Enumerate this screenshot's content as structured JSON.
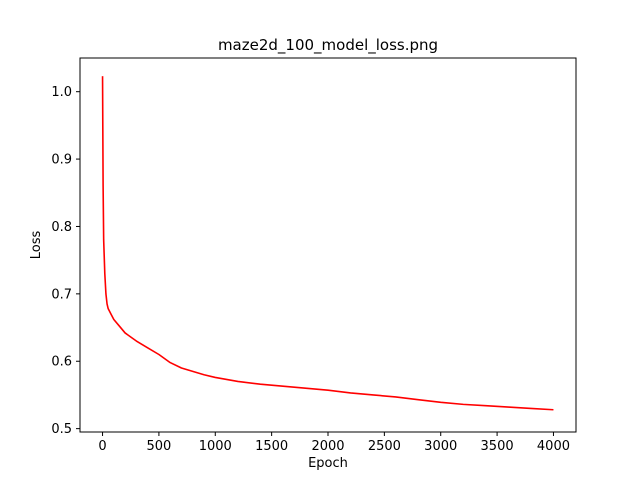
{
  "chart_data": {
    "type": "line",
    "title": "maze2d_100_model_loss.png",
    "xlabel": "Epoch",
    "ylabel": "Loss",
    "xlim": [
      -200,
      4200
    ],
    "ylim": [
      0.495,
      1.05
    ],
    "xticks": [
      0,
      500,
      1000,
      1500,
      2000,
      2500,
      3000,
      3500,
      4000
    ],
    "xtick_labels": [
      "0",
      "500",
      "1000",
      "1500",
      "2000",
      "2500",
      "3000",
      "3500",
      "4000"
    ],
    "yticks": [
      0.5,
      0.6,
      0.7,
      0.8,
      0.9,
      1.0
    ],
    "ytick_labels": [
      "0.5",
      "0.6",
      "0.7",
      "0.8",
      "0.9",
      "1.0"
    ],
    "grid": false,
    "series": [
      {
        "color": "#ff0000",
        "x": [
          0,
          5,
          10,
          20,
          30,
          40,
          50,
          75,
          100,
          150,
          200,
          250,
          300,
          400,
          500,
          600,
          700,
          800,
          900,
          1000,
          1200,
          1400,
          1600,
          1800,
          2000,
          2200,
          2400,
          2600,
          2800,
          3000,
          3200,
          3400,
          3600,
          3800,
          4000
        ],
        "y": [
          1.023,
          0.86,
          0.78,
          0.73,
          0.7,
          0.685,
          0.678,
          0.67,
          0.662,
          0.652,
          0.642,
          0.636,
          0.63,
          0.62,
          0.61,
          0.598,
          0.59,
          0.585,
          0.58,
          0.576,
          0.57,
          0.566,
          0.563,
          0.56,
          0.557,
          0.553,
          0.55,
          0.547,
          0.543,
          0.539,
          0.536,
          0.534,
          0.532,
          0.53,
          0.528
        ]
      }
    ]
  }
}
